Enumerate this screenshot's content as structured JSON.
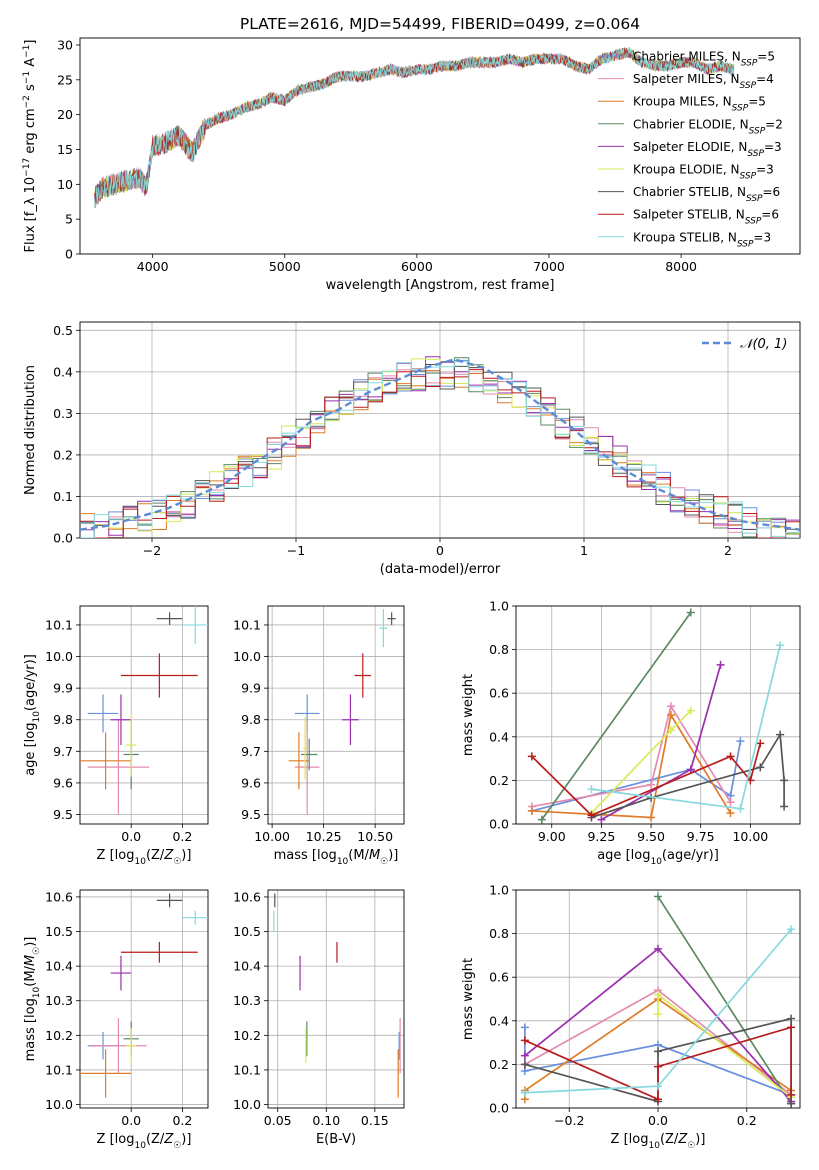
{
  "figure": {
    "title": "PLATE=2616, MJD=54499, FIBERID=0499, z=0.064"
  },
  "colors": {
    "chabrier_miles": "#6a8fdc",
    "salpeter_miles": "#e58ab0",
    "kroupa_miles": "#e07b27",
    "chabrier_elodie": "#5a8a62",
    "salpeter_elodie": "#9b2fae",
    "kroupa_elodie": "#d7ea57",
    "chabrier_stelib": "#555555",
    "salpeter_stelib": "#b81c1c",
    "kroupa_stelib": "#86d9de",
    "normal_curve": "#5b8bd6",
    "grid": "#b0b0b0"
  },
  "chart_data": [
    {
      "id": "spectrum",
      "type": "line",
      "title": "PLATE=2616, MJD=54499, FIBERID=0499, z=0.064",
      "xlabel": "wavelength [Angstrom, rest frame]",
      "ylabel": "Flux [f_λ 10^-17 erg cm^-2 s^-1 A^-1]",
      "xlim": [
        3450,
        8900
      ],
      "ylim": [
        0,
        31
      ],
      "xticks": [
        4000,
        5000,
        6000,
        7000,
        8000
      ],
      "yticks": [
        0,
        5,
        10,
        15,
        20,
        25,
        30
      ],
      "grid": false,
      "legend_position": "right",
      "x": [
        3560,
        3620,
        3700,
        3800,
        3900,
        3950,
        4000,
        4100,
        4200,
        4300,
        4400,
        4500,
        4600,
        4700,
        4800,
        4900,
        5000,
        5100,
        5200,
        5300,
        5400,
        5500,
        5600,
        5700,
        5800,
        5900,
        6000,
        6100,
        6200,
        6300,
        6400,
        6500,
        6600,
        6700,
        6800,
        6900,
        7000,
        7100,
        7200,
        7300,
        7400,
        7500,
        7600,
        7700,
        7800,
        7900,
        8000,
        8100,
        8200,
        8300,
        8400
      ],
      "y": [
        8,
        9.5,
        10,
        10.5,
        11,
        9.5,
        15.5,
        16,
        17,
        14.5,
        18.5,
        19.5,
        20,
        21,
        21.5,
        22.5,
        22,
        23.5,
        24,
        24.5,
        25.5,
        25.5,
        25.5,
        26,
        26.5,
        26,
        26.5,
        26.5,
        27,
        27,
        27.5,
        27.5,
        27.5,
        28,
        27.5,
        28,
        28,
        28,
        27,
        26.5,
        28,
        28.5,
        29,
        27.5,
        27,
        27,
        27.5,
        27.5,
        26.5,
        27,
        26.5
      ],
      "series": [
        {
          "name": "Chabrier MILES, N_SSP=5",
          "legend_main": "Chabrier MILES, N",
          "legend_sub": "SSP",
          "legend_tail": "=5",
          "color_key": "chabrier_miles"
        },
        {
          "name": "Salpeter MILES, N_SSP=4",
          "legend_main": "Salpeter MILES, N",
          "legend_sub": "SSP",
          "legend_tail": "=4",
          "color_key": "salpeter_miles"
        },
        {
          "name": "Kroupa MILES, N_SSP=5",
          "legend_main": "Kroupa MILES, N",
          "legend_sub": "SSP",
          "legend_tail": "=5",
          "color_key": "kroupa_miles"
        },
        {
          "name": "Chabrier ELODIE, N_SSP=2",
          "legend_main": "Chabrier ELODIE, N",
          "legend_sub": "SSP",
          "legend_tail": "=2",
          "color_key": "chabrier_elodie"
        },
        {
          "name": "Salpeter ELODIE, N_SSP=3",
          "legend_main": "Salpeter ELODIE, N",
          "legend_sub": "SSP",
          "legend_tail": "=3",
          "color_key": "salpeter_elodie"
        },
        {
          "name": "Kroupa ELODIE, N_SSP=3",
          "legend_main": "Kroupa ELODIE, N",
          "legend_sub": "SSP",
          "legend_tail": "=3",
          "color_key": "kroupa_elodie"
        },
        {
          "name": "Chabrier STELIB, N_SSP=6",
          "legend_main": "Chabrier STELIB, N",
          "legend_sub": "SSP",
          "legend_tail": "=6",
          "color_key": "chabrier_stelib"
        },
        {
          "name": "Salpeter STELIB, N_SSP=6",
          "legend_main": "Salpeter STELIB, N",
          "legend_sub": "SSP",
          "legend_tail": "=6",
          "color_key": "salpeter_stelib"
        },
        {
          "name": "Kroupa STELIB, N_SSP=3",
          "legend_main": "Kroupa STELIB, N",
          "legend_sub": "SSP",
          "legend_tail": "=3",
          "color_key": "kroupa_stelib"
        }
      ]
    },
    {
      "id": "residuals",
      "type": "line",
      "xlabel": "(data-model)/error",
      "ylabel": "Normed distribution",
      "xlim": [
        -2.5,
        2.5
      ],
      "ylim": [
        0,
        0.52
      ],
      "xticks": [
        -2,
        -1,
        0,
        1,
        2
      ],
      "yticks": [
        0.0,
        0.1,
        0.2,
        0.3,
        0.4,
        0.5
      ],
      "grid": true,
      "legend_position": "top-right",
      "normal_label": "𝒩(0, 1)",
      "x": [
        -2.5,
        -2.3,
        -2.1,
        -1.9,
        -1.7,
        -1.5,
        -1.3,
        -1.1,
        -0.9,
        -0.7,
        -0.5,
        -0.3,
        -0.1,
        0.1,
        0.3,
        0.5,
        0.7,
        0.9,
        1.1,
        1.3,
        1.5,
        1.7,
        1.9,
        2.1,
        2.3,
        2.5
      ],
      "y": [
        0.02,
        0.03,
        0.05,
        0.07,
        0.1,
        0.13,
        0.18,
        0.22,
        0.28,
        0.31,
        0.35,
        0.38,
        0.41,
        0.43,
        0.41,
        0.37,
        0.32,
        0.27,
        0.21,
        0.16,
        0.12,
        0.09,
        0.06,
        0.04,
        0.03,
        0.02
      ]
    },
    {
      "id": "age_vs_z",
      "type": "scatter",
      "xlabel": "Z [log10(Z/Z☉)]",
      "ylabel": "age  [log10(age/yr)]",
      "xlim": [
        -0.2,
        0.3
      ],
      "ylim": [
        9.47,
        10.16
      ],
      "xticks": [
        0.0,
        0.2
      ],
      "yticks": [
        9.5,
        9.6,
        9.7,
        9.8,
        9.9,
        10.0,
        10.1
      ],
      "grid": true,
      "points": [
        {
          "color_key": "chabrier_miles",
          "x": -0.11,
          "y": 9.82,
          "xerr": 0.06,
          "yerr": 0.06
        },
        {
          "color_key": "salpeter_miles",
          "x": -0.05,
          "y": 9.65,
          "xerr": 0.12,
          "yerr": 0.15
        },
        {
          "color_key": "kroupa_miles",
          "x": -0.1,
          "y": 9.67,
          "xerr": 0.1,
          "yerr": 0.09
        },
        {
          "color_key": "chabrier_elodie",
          "x": 0.0,
          "y": 9.69,
          "xerr": 0.03,
          "yerr": 0.11
        },
        {
          "color_key": "salpeter_elodie",
          "x": -0.04,
          "y": 9.8,
          "xerr": 0.04,
          "yerr": 0.08
        },
        {
          "color_key": "kroupa_elodie",
          "x": 0.0,
          "y": 9.72,
          "xerr": 0.02,
          "yerr": 0.1
        },
        {
          "color_key": "chabrier_stelib",
          "x": 0.15,
          "y": 10.12,
          "xerr": 0.05,
          "yerr": 0.02
        },
        {
          "color_key": "salpeter_stelib",
          "x": 0.11,
          "y": 9.94,
          "xerr": 0.15,
          "yerr": 0.07
        },
        {
          "color_key": "kroupa_stelib",
          "x": 0.25,
          "y": 10.1,
          "xerr": 0.05,
          "yerr": 0.06
        }
      ]
    },
    {
      "id": "age_vs_mass",
      "type": "scatter",
      "xlabel": "mass [log10(M/M☉)]",
      "ylabel": "",
      "xlim": [
        9.98,
        10.64
      ],
      "ylim": [
        9.47,
        10.16
      ],
      "xticks": [
        10.0,
        10.25,
        10.5
      ],
      "yticks": [
        9.5,
        9.6,
        9.7,
        9.8,
        9.9,
        10.0,
        10.1
      ],
      "grid": true,
      "points": [
        {
          "color_key": "chabrier_miles",
          "x": 10.17,
          "y": 9.82,
          "xerr": 0.06,
          "yerr": 0.06
        },
        {
          "color_key": "salpeter_miles",
          "x": 10.17,
          "y": 9.65,
          "xerr": 0.06,
          "yerr": 0.15
        },
        {
          "color_key": "kroupa_miles",
          "x": 10.13,
          "y": 9.67,
          "xerr": 0.05,
          "yerr": 0.09
        },
        {
          "color_key": "chabrier_elodie",
          "x": 10.18,
          "y": 9.69,
          "xerr": 0.04,
          "yerr": 0.05
        },
        {
          "color_key": "salpeter_elodie",
          "x": 10.38,
          "y": 9.8,
          "xerr": 0.04,
          "yerr": 0.08
        },
        {
          "color_key": "kroupa_elodie",
          "x": 10.16,
          "y": 9.71,
          "xerr": 0.01,
          "yerr": 0.1
        },
        {
          "color_key": "chabrier_stelib",
          "x": 10.58,
          "y": 10.12,
          "xerr": 0.02,
          "yerr": 0.02
        },
        {
          "color_key": "salpeter_stelib",
          "x": 10.44,
          "y": 9.94,
          "xerr": 0.04,
          "yerr": 0.07
        },
        {
          "color_key": "kroupa_stelib",
          "x": 10.54,
          "y": 10.09,
          "xerr": 0.02,
          "yerr": 0.06
        }
      ]
    },
    {
      "id": "mass_weight_vs_age",
      "type": "line",
      "xlabel": "age  [log10(age/yr)]",
      "ylabel": "mass weight",
      "xlim": [
        8.82,
        10.25
      ],
      "ylim": [
        0,
        1.0
      ],
      "xticks": [
        9.0,
        9.25,
        9.5,
        9.75,
        10.0
      ],
      "yticks": [
        0.0,
        0.2,
        0.4,
        0.6,
        0.8,
        1.0
      ],
      "grid": true,
      "series": [
        {
          "color_key": "chabrier_miles",
          "x": [
            8.9,
            9.7,
            9.9,
            9.95
          ],
          "y": [
            0.06,
            0.25,
            0.13,
            0.38
          ]
        },
        {
          "color_key": "salpeter_miles",
          "x": [
            8.9,
            9.5,
            9.6,
            9.9
          ],
          "y": [
            0.08,
            0.18,
            0.54,
            0.1
          ]
        },
        {
          "color_key": "kroupa_miles",
          "x": [
            8.9,
            9.5,
            9.6,
            9.9
          ],
          "y": [
            0.06,
            0.03,
            0.5,
            0.05
          ]
        },
        {
          "color_key": "chabrier_elodie",
          "x": [
            8.95,
            9.7
          ],
          "y": [
            0.02,
            0.97
          ]
        },
        {
          "color_key": "salpeter_elodie",
          "x": [
            9.25,
            9.7,
            9.85
          ],
          "y": [
            0.02,
            0.25,
            0.73
          ]
        },
        {
          "color_key": "kroupa_elodie",
          "x": [
            9.2,
            9.6,
            9.7
          ],
          "y": [
            0.05,
            0.43,
            0.52
          ]
        },
        {
          "color_key": "chabrier_stelib",
          "x": [
            9.2,
            9.5,
            10.05,
            10.15,
            10.17,
            10.17
          ],
          "y": [
            0.03,
            0.12,
            0.26,
            0.41,
            0.2,
            0.08
          ]
        },
        {
          "color_key": "salpeter_stelib",
          "x": [
            8.9,
            9.2,
            9.9,
            10.0,
            10.05
          ],
          "y": [
            0.31,
            0.04,
            0.31,
            0.2,
            0.37
          ]
        },
        {
          "color_key": "kroupa_stelib",
          "x": [
            9.2,
            9.95,
            10.15
          ],
          "y": [
            0.16,
            0.07,
            0.82
          ]
        }
      ]
    },
    {
      "id": "mass_vs_z",
      "type": "scatter",
      "xlabel": "Z [log10(Z/Z☉)]",
      "ylabel": "mass [log10(M/M☉)]",
      "xlim": [
        -0.2,
        0.3
      ],
      "ylim": [
        9.99,
        10.62
      ],
      "xticks": [
        0.0,
        0.2
      ],
      "yticks": [
        10.0,
        10.1,
        10.2,
        10.3,
        10.4,
        10.5,
        10.6
      ],
      "grid": true,
      "points": [
        {
          "color_key": "chabrier_miles",
          "x": -0.11,
          "y": 10.17,
          "xerr": 0.06,
          "yerr": 0.04
        },
        {
          "color_key": "salpeter_miles",
          "x": -0.05,
          "y": 10.17,
          "xerr": 0.11,
          "yerr": 0.08
        },
        {
          "color_key": "kroupa_miles",
          "x": -0.1,
          "y": 10.09,
          "xerr": 0.1,
          "yerr": 0.07
        },
        {
          "color_key": "chabrier_elodie",
          "x": 0.0,
          "y": 10.19,
          "xerr": 0.03,
          "yerr": 0.05
        },
        {
          "color_key": "salpeter_elodie",
          "x": -0.04,
          "y": 10.38,
          "xerr": 0.04,
          "yerr": 0.05
        },
        {
          "color_key": "kroupa_elodie",
          "x": 0.0,
          "y": 10.17,
          "xerr": 0.02,
          "yerr": 0.05
        },
        {
          "color_key": "chabrier_stelib",
          "x": 0.15,
          "y": 10.59,
          "xerr": 0.05,
          "yerr": 0.02
        },
        {
          "color_key": "salpeter_stelib",
          "x": 0.11,
          "y": 10.44,
          "xerr": 0.15,
          "yerr": 0.03
        },
        {
          "color_key": "kroupa_stelib",
          "x": 0.25,
          "y": 10.54,
          "xerr": 0.05,
          "yerr": 0.02
        }
      ]
    },
    {
      "id": "mass_vs_ebv",
      "type": "scatter",
      "xlabel": "E(B-V)",
      "ylabel": "",
      "xlim": [
        0.04,
        0.18
      ],
      "ylim": [
        9.99,
        10.62
      ],
      "xticks": [
        0.05,
        0.1,
        0.15
      ],
      "yticks": [
        10.0,
        10.1,
        10.2,
        10.3,
        10.4,
        10.5,
        10.6
      ],
      "grid": true,
      "points": [
        {
          "color_key": "chabrier_miles",
          "x": 0.175,
          "y": 10.17,
          "xerr": 0.0,
          "yerr": 0.04
        },
        {
          "color_key": "salpeter_miles",
          "x": 0.176,
          "y": 10.17,
          "xerr": 0.0,
          "yerr": 0.08
        },
        {
          "color_key": "kroupa_miles",
          "x": 0.174,
          "y": 10.09,
          "xerr": 0.0,
          "yerr": 0.07
        },
        {
          "color_key": "chabrier_elodie",
          "x": 0.08,
          "y": 10.19,
          "xerr": 0.0,
          "yerr": 0.05
        },
        {
          "color_key": "salpeter_elodie",
          "x": 0.073,
          "y": 10.38,
          "xerr": 0.0,
          "yerr": 0.05
        },
        {
          "color_key": "kroupa_elodie",
          "x": 0.079,
          "y": 10.17,
          "xerr": 0.0,
          "yerr": 0.05
        },
        {
          "color_key": "chabrier_stelib",
          "x": 0.047,
          "y": 10.59,
          "xerr": 0.0,
          "yerr": 0.02
        },
        {
          "color_key": "salpeter_stelib",
          "x": 0.111,
          "y": 10.44,
          "xerr": 0.0,
          "yerr": 0.03
        },
        {
          "color_key": "kroupa_stelib",
          "x": 0.046,
          "y": 10.53,
          "xerr": 0.0,
          "yerr": 0.03
        }
      ]
    },
    {
      "id": "mass_weight_vs_z",
      "type": "line",
      "xlabel": "Z [log10(Z/Z☉)]",
      "ylabel": "mass weight",
      "xlim": [
        -0.32,
        0.32
      ],
      "ylim": [
        0,
        1.0
      ],
      "xticks": [
        -0.2,
        0.0,
        0.2
      ],
      "yticks": [
        0.0,
        0.2,
        0.4,
        0.6,
        0.8,
        1.0
      ],
      "grid": true,
      "series": [
        {
          "color_key": "chabrier_miles",
          "x": [
            -0.3,
            -0.3,
            0.0,
            0.3
          ],
          "y": [
            0.37,
            0.17,
            0.29,
            0.06
          ]
        },
        {
          "color_key": "salpeter_miles",
          "x": [
            -0.3,
            0.0,
            0.3
          ],
          "y": [
            0.2,
            0.54,
            0.06
          ]
        },
        {
          "color_key": "kroupa_miles",
          "x": [
            -0.3,
            -0.3,
            0.0,
            0.3
          ],
          "y": [
            0.04,
            0.08,
            0.5,
            0.08
          ]
        },
        {
          "color_key": "chabrier_elodie",
          "x": [
            0.0,
            0.3
          ],
          "y": [
            0.97,
            0.02
          ]
        },
        {
          "color_key": "salpeter_elodie",
          "x": [
            -0.3,
            0.0,
            0.3
          ],
          "y": [
            0.24,
            0.73,
            0.03
          ]
        },
        {
          "color_key": "kroupa_elodie",
          "x": [
            0.0,
            0.0,
            0.3
          ],
          "y": [
            0.43,
            0.52,
            0.05
          ]
        },
        {
          "color_key": "chabrier_stelib",
          "x": [
            -0.3,
            0.0,
            0.0,
            0.3,
            0.3
          ],
          "y": [
            0.2,
            0.03,
            0.26,
            0.41,
            0.02
          ]
        },
        {
          "color_key": "salpeter_stelib",
          "x": [
            -0.3,
            0.0,
            0.0,
            0.3,
            0.3
          ],
          "y": [
            0.31,
            0.04,
            0.19,
            0.37,
            0.06
          ]
        },
        {
          "color_key": "kroupa_stelib",
          "x": [
            -0.3,
            0.0,
            0.3
          ],
          "y": [
            0.07,
            0.1,
            0.82
          ]
        }
      ]
    }
  ]
}
